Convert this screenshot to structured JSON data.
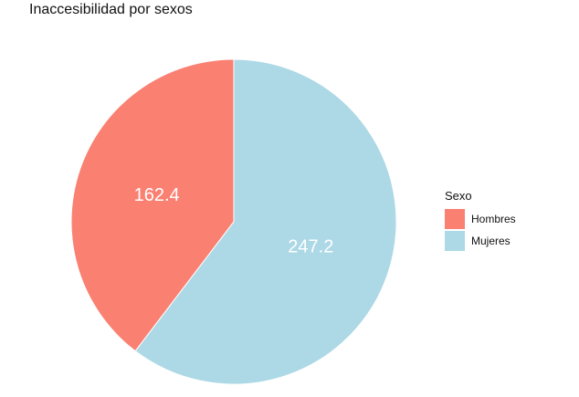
{
  "chart_data": {
    "type": "pie",
    "title": "Inaccesibilidad por sexos",
    "legend": {
      "title": "Sexo",
      "position": "right"
    },
    "slices": [
      {
        "label": "Hombres",
        "value": 162.4,
        "value_label": "162.4",
        "color": "#FA8072"
      },
      {
        "label": "Mujeres",
        "value": 247.2,
        "value_label": "247.2",
        "color": "#ADD8E6"
      }
    ]
  }
}
